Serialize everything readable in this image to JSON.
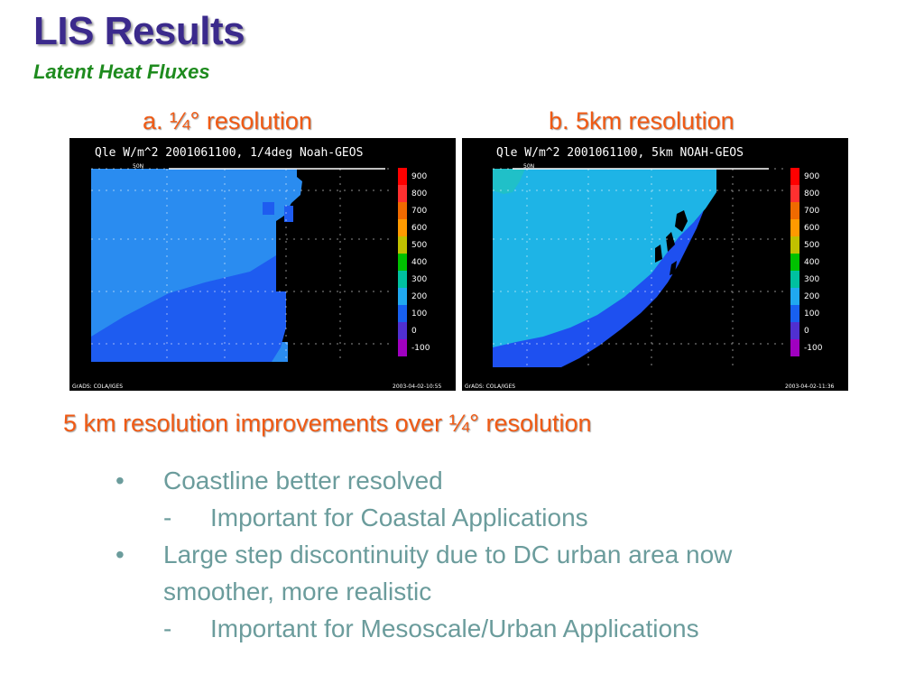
{
  "slide": {
    "title": "LIS Results",
    "subtitle": "Latent Heat Fluxes"
  },
  "panels": [
    {
      "label": "a. ¼° resolution",
      "map_title": "Qle W/m^2 2001061100, 1/4deg Noah-GEOS",
      "lat_label": "50N",
      "footer_left": "GrADS: COLA/IGES",
      "footer_right": "2003-04-02-10:55"
    },
    {
      "label": "b. 5km resolution",
      "map_title": "Qle W/m^2 2001061100, 5km NOAH-GEOS",
      "lat_label": "50N",
      "footer_left": "GrADS: COLA/IGES",
      "footer_right": "2003-04-02-11:36"
    }
  ],
  "colorbar": {
    "labels": [
      "900",
      "800",
      "700",
      "600",
      "500",
      "400",
      "300",
      "200",
      "100",
      "0",
      "-100"
    ],
    "colors": [
      "#ff0000",
      "#ff3030",
      "#f06a00",
      "#ff9a00",
      "#c0c000",
      "#00c000",
      "#00c0a0",
      "#20a8f0",
      "#1860f0",
      "#5030d0",
      "#a000c0"
    ]
  },
  "colors": {
    "land_1": "#2a8cf0",
    "land_1_dark": "#1e5cf0",
    "land_2": "#1eb4e6",
    "land_2_dark": "#1e50f0",
    "ocean": "#000000"
  },
  "content": {
    "heading": "5 km resolution improvements over ¼° resolution",
    "items": [
      {
        "bullet": "•",
        "text": "Coastline better resolved",
        "level": 1
      },
      {
        "bullet": "-",
        "text": "Important for Coastal Applications",
        "level": 2
      },
      {
        "bullet": "•",
        "text": "Large step discontinuity due to DC urban area now",
        "level": 1
      },
      {
        "bullet": "",
        "text": "smoother, more realistic",
        "level": 1
      },
      {
        "bullet": "-",
        "text": "Important for Mesoscale/Urban Applications",
        "level": 2
      }
    ]
  }
}
